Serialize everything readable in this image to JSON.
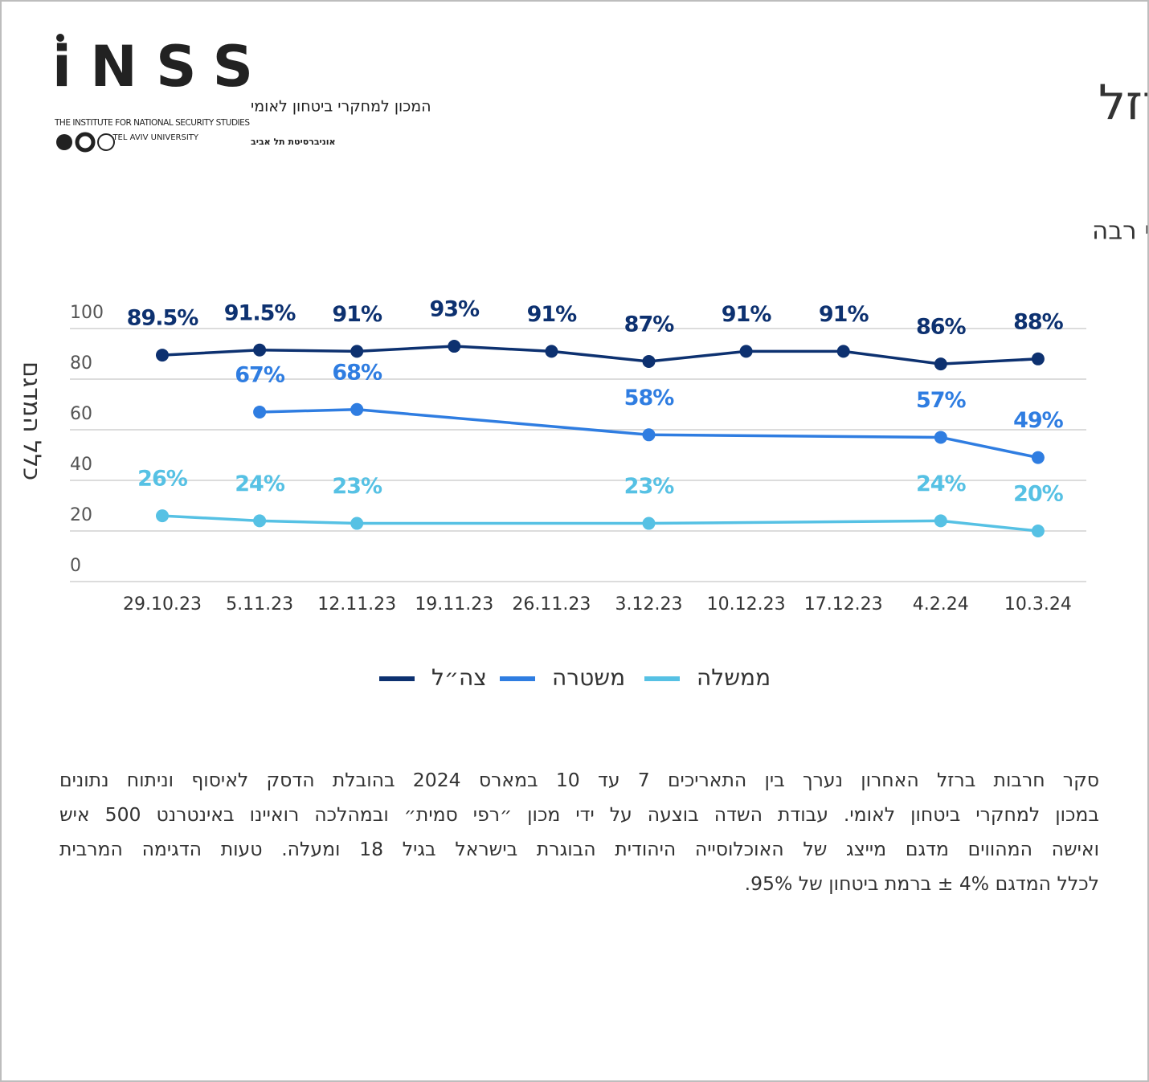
{
  "logo": {
    "mark": "iNSS",
    "name_he": "המכון למחקרי ביטחון לאומי",
    "name_en": "THE INSTITUTE FOR NATIONAL SECURITY STUDIES",
    "university_en": "TEL AVIV UNIVERSITY",
    "university_he": "אוניברסיטת תל אביב"
  },
  "header": {
    "title": "ממצאי סקר חרבות ברזל"
  },
  "chart_data": {
    "type": "line",
    "title": "שיעור המשיבים שהביעו אמון במוסדות – במידה רבה ודי רבה",
    "y_label": "כלל המדגם",
    "categories": [
      "29.10.23",
      "5.11.23",
      "12.11.23",
      "19.11.23",
      "26.11.23",
      "3.12.23",
      "10.12.23",
      "17.12.23",
      "4.2.24",
      "10.3.24"
    ],
    "series": [
      {
        "name": "צה״ל",
        "color": "#0d3170",
        "values": [
          89.5,
          91.5,
          91,
          93,
          91,
          87,
          91,
          91,
          86,
          88
        ],
        "value_labels": [
          "89.5%",
          "91.5%",
          "91%",
          "93%",
          "91%",
          "87%",
          "91%",
          "91%",
          "86%",
          "88%"
        ]
      },
      {
        "name": "משטרה",
        "color": "#2f7de1",
        "values": [
          null,
          67,
          68,
          null,
          null,
          58,
          null,
          null,
          57,
          49
        ],
        "value_labels": [
          null,
          "67%",
          "68%",
          null,
          null,
          "58%",
          null,
          null,
          "57%",
          "49%"
        ]
      },
      {
        "name": "ממשלה",
        "color": "#56c1e4",
        "values": [
          26,
          24,
          23,
          null,
          null,
          23,
          null,
          null,
          24,
          20
        ],
        "value_labels": [
          "26%",
          "24%",
          "23%",
          null,
          null,
          "23%",
          null,
          null,
          "24%",
          "20%"
        ]
      }
    ],
    "ylim": [
      0,
      100
    ],
    "yticks": [
      0,
      20,
      40,
      60,
      80,
      100
    ],
    "grid": true,
    "legend": "bottom"
  },
  "note": {
    "lines": [
      "סקר חרבות ברזל האחרון נערך בין התאריכים 7 עד 10 במארס 2024 בהובלת הדסק לאיסוף וניתוח נתונים",
      "במכון למחקרי ביטחון לאומי. עבודת השדה בוצעה על ידי מכון ״רפי סמית״ ובמהלכה רואיינו באינטרנט 500 איש",
      "ואישה המהווים מדגם מייצג של האוכלוסייה היהודית הבוגרת בישראל בגיל 18 ומעלה. טעות הדגימה המרבית",
      "לכלל המדגם 4% ± ברמת ביטחון של 95%."
    ]
  }
}
